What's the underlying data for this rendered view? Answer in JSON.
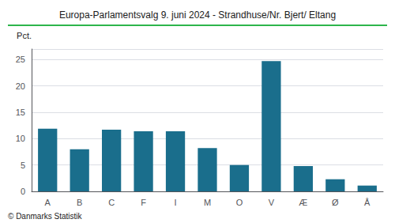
{
  "chart_data": {
    "type": "bar",
    "title": "Europa-Parlamentsvalg 9. juni 2024 - Strandhuse/Nr. Bjert/ Eltang",
    "ylabel": "Pct.",
    "annotations": [
      "© Danmarks Statistik"
    ],
    "categories": [
      "A",
      "B",
      "C",
      "F",
      "I",
      "M",
      "O",
      "V",
      "Æ",
      "Ø",
      "Å"
    ],
    "values": [
      11.9,
      8.0,
      11.7,
      11.4,
      11.4,
      8.2,
      5.0,
      24.7,
      4.8,
      2.3,
      1.1
    ],
    "color": "#1a6e8c",
    "ylim": [
      0,
      27
    ],
    "yticks": [
      0,
      5,
      10,
      15,
      20,
      25
    ],
    "grid": true
  }
}
